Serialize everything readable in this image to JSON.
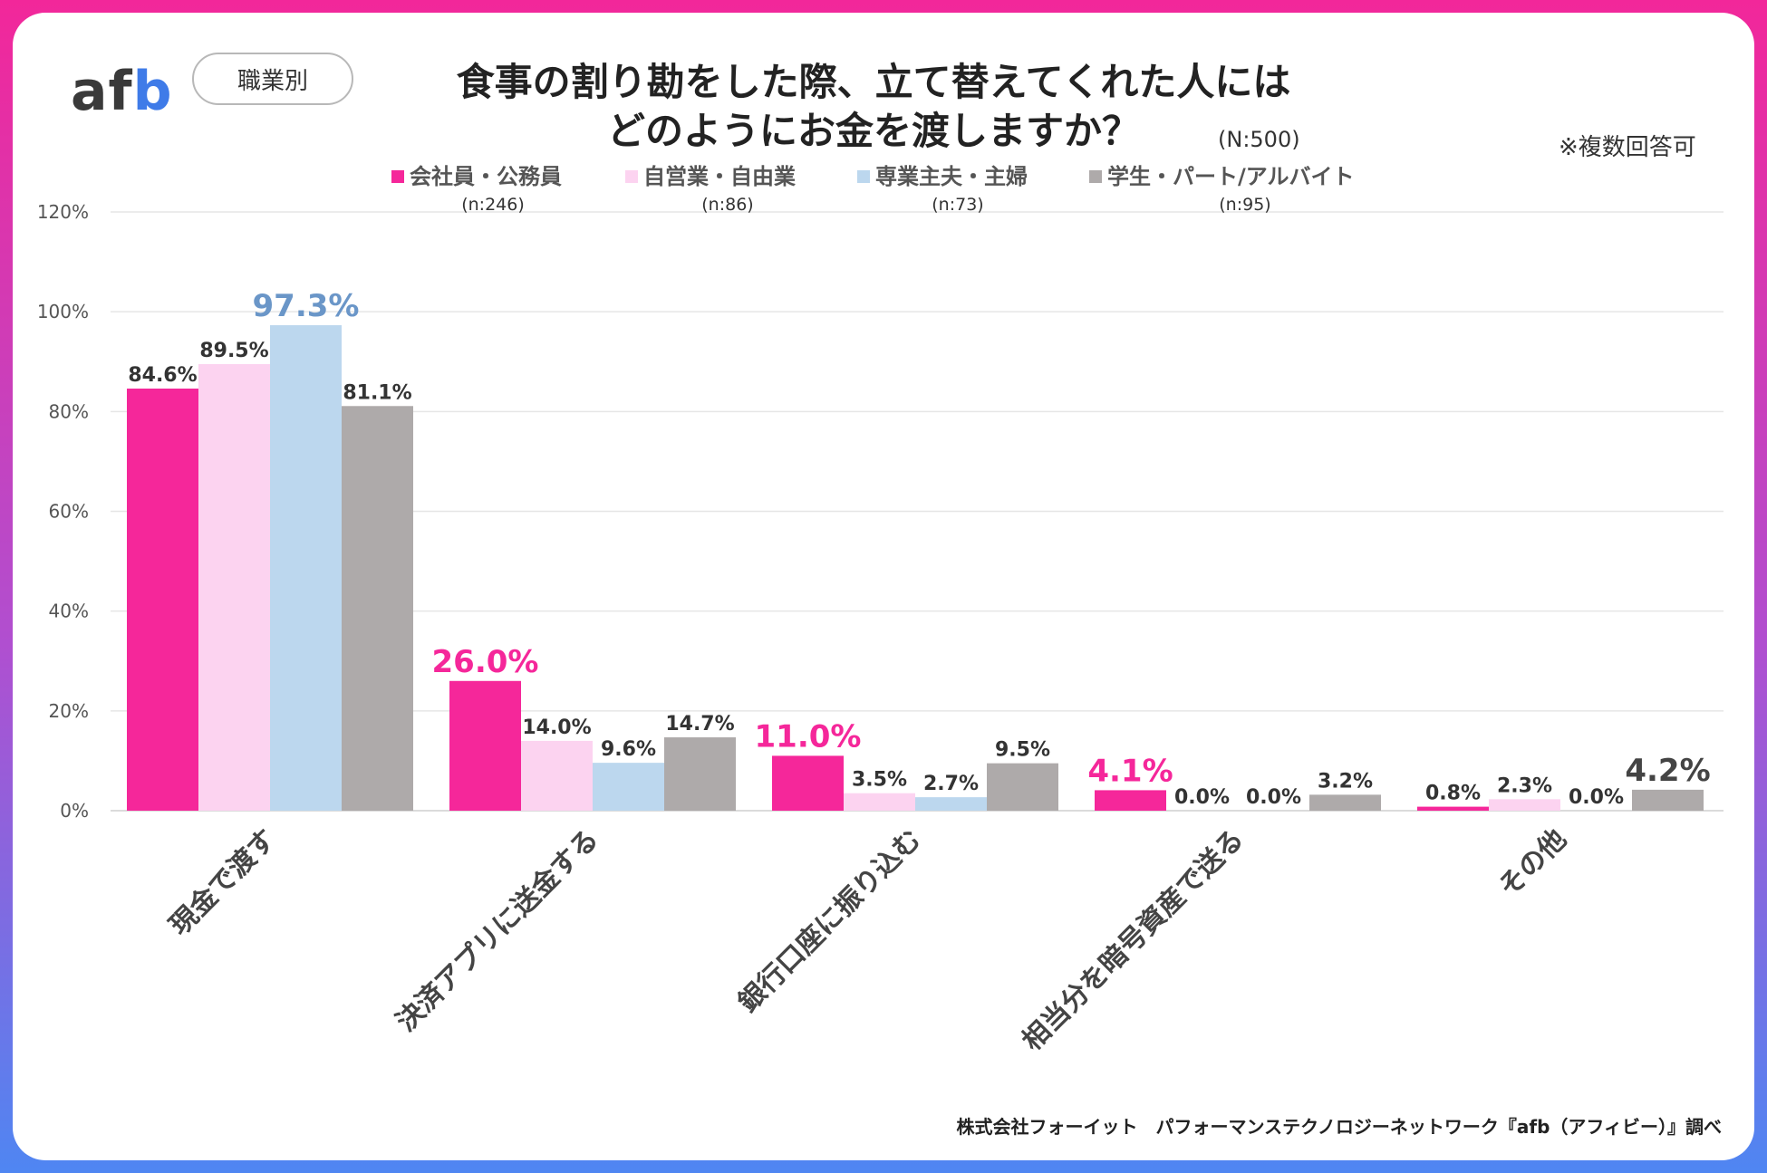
{
  "header": {
    "logo_a": "af",
    "logo_b": "b",
    "badge": "職業別",
    "title_line1": "食事の割り勘をした際、立て替えてくれた人には",
    "title_line2": "どのようにお金を渡しますか？",
    "n_total": "(N:500)",
    "note": "※複数回答可"
  },
  "footer": "株式会社フォーイット　パフォーマンステクノロジーネットワーク『afb（アフィビー）』調べ",
  "colors": {
    "company": "#f5279a",
    "self": "#fcd3f0",
    "home": "#bcd7ee",
    "student": "#aeaaaa",
    "highlight_blue": "#6a96c8"
  },
  "chart_data": {
    "type": "bar",
    "title": "食事の割り勘をした際、立て替えてくれた人にはどのようにお金を渡しますか？",
    "categories": [
      "現金で渡す",
      "決済アプリに送金する",
      "銀行口座に振り込む",
      "相当分を暗号資産で送る",
      "その他"
    ],
    "series": [
      {
        "name": "会社員・公務員",
        "n": "(n:246)",
        "values": [
          84.6,
          26.0,
          11.0,
          4.1,
          0.8
        ],
        "labels": [
          "84.6%",
          "26.0%",
          "11.0%",
          "4.1%",
          "0.8%"
        ]
      },
      {
        "name": "自営業・自由業",
        "n": "(n:86)",
        "values": [
          89.5,
          14.0,
          3.5,
          0.0,
          2.3
        ],
        "labels": [
          "89.5%",
          "14.0%",
          "3.5%",
          "0.0%",
          "2.3%"
        ]
      },
      {
        "name": "専業主夫・主婦",
        "n": "(n:73)",
        "values": [
          97.3,
          9.6,
          2.7,
          0.0,
          0.0
        ],
        "labels": [
          "97.3%",
          "9.6%",
          "2.7%",
          "0.0%",
          "0.0%"
        ]
      },
      {
        "name": "学生・パート/アルバイト",
        "n": "(n:95)",
        "values": [
          81.1,
          14.7,
          9.5,
          3.2,
          4.2
        ],
        "labels": [
          "81.1%",
          "14.7%",
          "9.5%",
          "3.2%",
          "4.2%"
        ]
      }
    ],
    "highlights": [
      {
        "category": 0,
        "series": 2,
        "color": "highlight_blue"
      },
      {
        "category": 1,
        "series": 0,
        "color": "company"
      },
      {
        "category": 2,
        "series": 0,
        "color": "company"
      },
      {
        "category": 3,
        "series": 0,
        "color": "company"
      },
      {
        "category": 4,
        "series": 3,
        "color": "dark"
      }
    ],
    "y_ticks": [
      "0%",
      "20%",
      "40%",
      "60%",
      "80%",
      "100%",
      "120%"
    ],
    "ylim": [
      0,
      120
    ],
    "legend_position": "top",
    "grid": true,
    "unit": "%"
  }
}
